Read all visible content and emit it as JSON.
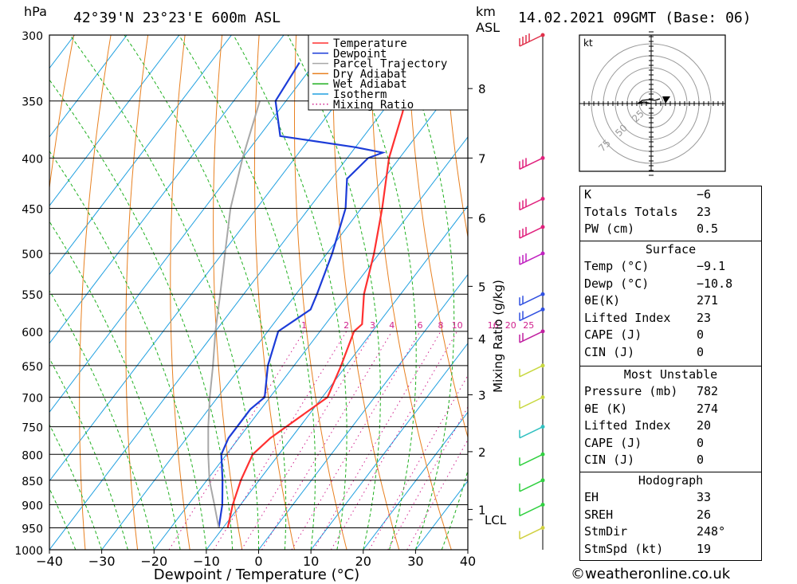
{
  "header": {
    "unit_hpa": "hPa",
    "location": "42°39'N 23°23'E 600m ASL",
    "unit_km": "km",
    "unit_asl": "ASL",
    "datetime": "14.02.2021 09GMT (Base: 06)"
  },
  "chart_data": {
    "type": "line",
    "title": "42°39'N 23°23'E 600m ASL",
    "xlabel": "Dewpoint / Temperature (°C)",
    "ylabel": "hPa",
    "xlim": [
      -40,
      40
    ],
    "ylim": [
      1000,
      300
    ],
    "x_ticks": [
      "−40",
      "−30",
      "−20",
      "−10",
      "0",
      "10",
      "20",
      "30",
      "40"
    ],
    "pressure_levels": [
      300,
      350,
      400,
      450,
      500,
      550,
      600,
      650,
      700,
      750,
      800,
      850,
      900,
      950,
      1000
    ],
    "height_axis_label": "Mixing Ratio (g/kg)",
    "height_ticks": [
      {
        "km": "8",
        "p": 340
      },
      {
        "km": "7",
        "p": 400
      },
      {
        "km": "6",
        "p": 460
      },
      {
        "km": "5",
        "p": 540
      },
      {
        "km": "4",
        "p": 610
      },
      {
        "km": "3",
        "p": 696
      },
      {
        "km": "2",
        "p": 795
      },
      {
        "km": "1",
        "p": 910
      }
    ],
    "lcl": {
      "label": "LCL",
      "p": 932
    },
    "mixing_ratio_labels": [
      "1",
      "2",
      "3",
      "4",
      "6",
      "8",
      "10",
      "16",
      "20",
      "25"
    ],
    "colors": {
      "temperature": "#ff3030",
      "dewpoint": "#1c3cd8",
      "parcel": "#a8a8a8",
      "dry_adiabat": "#e88020",
      "wet_adiabat": "#20b020",
      "isotherm": "#20a0e0",
      "mixing": "#d0208c"
    },
    "legend": [
      "Temperature",
      "Dewpoint",
      "Parcel Trajectory",
      "Dry Adiabat",
      "Wet Adiabat",
      "Isotherm",
      "Mixing Ratio"
    ],
    "legend_position": "top-right",
    "series": [
      {
        "name": "Temperature",
        "points": [
          [
            -9.1,
            950
          ],
          [
            -11.5,
            900
          ],
          [
            -13.5,
            850
          ],
          [
            -15,
            800
          ],
          [
            -14,
            770
          ],
          [
            -9,
            700
          ],
          [
            -11,
            650
          ],
          [
            -13.5,
            600
          ],
          [
            -13,
            590
          ],
          [
            -17,
            550
          ],
          [
            -21,
            500
          ],
          [
            -26,
            450
          ],
          [
            -32,
            400
          ],
          [
            -36,
            360
          ],
          [
            -41,
            320
          ],
          [
            -42,
            310
          ]
        ]
      },
      {
        "name": "Dewpoint",
        "points": [
          [
            -10.8,
            950
          ],
          [
            -13.5,
            900
          ],
          [
            -17,
            850
          ],
          [
            -21,
            800
          ],
          [
            -22,
            770
          ],
          [
            -22,
            720
          ],
          [
            -21,
            700
          ],
          [
            -25,
            650
          ],
          [
            -28,
            600
          ],
          [
            -25,
            570
          ],
          [
            -26,
            550
          ],
          [
            -29,
            500
          ],
          [
            -33,
            450
          ],
          [
            -37,
            420
          ],
          [
            -36,
            400
          ],
          [
            -34,
            395
          ],
          [
            -40,
            390
          ],
          [
            -56,
            380
          ],
          [
            -62,
            350
          ],
          [
            -63,
            320
          ]
        ]
      },
      {
        "name": "Parcel Trajectory",
        "points": [
          [
            -10.8,
            950
          ],
          [
            -15,
            900
          ],
          [
            -19.5,
            850
          ],
          [
            -23.5,
            800
          ],
          [
            -27.5,
            750
          ],
          [
            -31.5,
            700
          ],
          [
            -35.5,
            650
          ],
          [
            -40,
            600
          ],
          [
            -44.5,
            550
          ],
          [
            -49.5,
            500
          ],
          [
            -55,
            450
          ],
          [
            -60,
            400
          ],
          [
            -65,
            350
          ]
        ]
      }
    ]
  },
  "hodograph": {
    "unit": "kt",
    "rings": [
      "25",
      "50",
      "75"
    ]
  },
  "indices": {
    "k_label": "K",
    "k": "−6",
    "tt_label": "Totals Totals",
    "tt": "23",
    "pw_label": "PW (cm)",
    "pw": "0.5"
  },
  "surface": {
    "title": "Surface",
    "temp_label": "Temp (°C)",
    "temp": "−9.1",
    "dewp_label": "Dewp (°C)",
    "dewp": "−10.8",
    "thetae_label": "θE(K)",
    "thetae": "271",
    "li_label": "Lifted Index",
    "li": "23",
    "cape_label": "CAPE (J)",
    "cape": "0",
    "cin_label": "CIN (J)",
    "cin": "0"
  },
  "most_unstable": {
    "title": "Most Unstable",
    "pressure_label": "Pressure (mb)",
    "pressure": "782",
    "thetae_label": "θE (K)",
    "thetae": "274",
    "li_label": "Lifted Index",
    "li": "20",
    "cape_label": "CAPE (J)",
    "cape": "0",
    "cin_label": "CIN (J)",
    "cin": "0"
  },
  "hodograph_table": {
    "title": "Hodograph",
    "eh_label": "EH",
    "eh": "33",
    "sreh_label": "SREH",
    "sreh": "26",
    "stmdir_label": "StmDir",
    "stmdir": "248°",
    "stmspd_label": "StmSpd (kt)",
    "stmspd": "19"
  },
  "footer": "©weatheronline.co.uk"
}
